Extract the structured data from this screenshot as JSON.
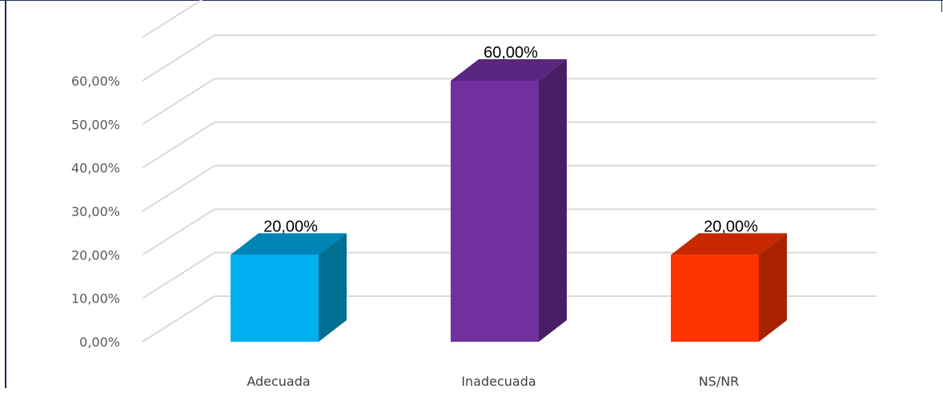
{
  "chart_data": {
    "type": "bar",
    "categories": [
      "Adecuada",
      "Inadecuada",
      "NS/NR"
    ],
    "values": [
      20.0,
      60.0,
      20.0
    ],
    "data_labels": [
      "20,00%",
      "60,00%",
      "20,00%"
    ],
    "yticks": [
      "0,00%",
      "10,00%",
      "20,00%",
      "30,00%",
      "40,00%",
      "50,00%",
      "60,00%"
    ],
    "ylim": [
      0,
      60
    ],
    "grid": true,
    "style": "3d-column",
    "colors": {
      "Adecuada": {
        "front": "#00b0f0",
        "top": "#0083b6",
        "side": "#006f92"
      },
      "Inadecuada": {
        "front": "#7030a0",
        "top": "#5a2680",
        "side": "#481e66"
      },
      "NS/NR": {
        "front": "#ff3300",
        "top": "#c72800",
        "side": "#a82200"
      }
    },
    "gridline_color": "#d9d9d9"
  }
}
